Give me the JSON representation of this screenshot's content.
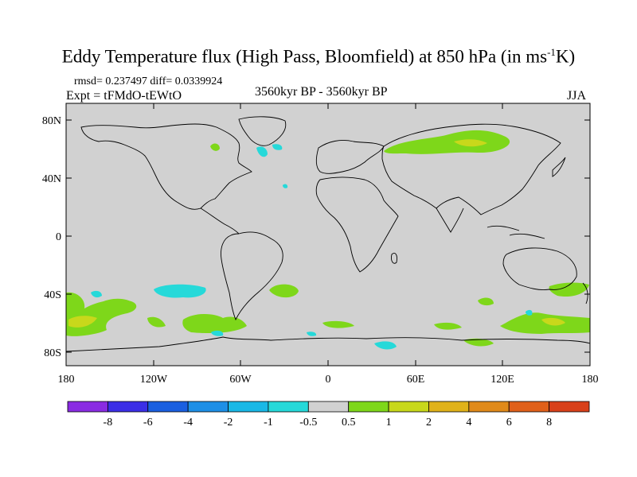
{
  "title": {
    "main": "Eddy Temperature flux (High Pass, Bloomfield) at 850 hPa (in ms",
    "sup": "-1",
    "unit_end": "K)"
  },
  "stats": {
    "rmsd_text": "rmsd= 0.237497 diff= 0.0339924",
    "expt_text": "Expt = tFMdO-tEWtO",
    "period_text": "3560kyr BP - 3560kyr BP",
    "season_text": "JJA"
  },
  "map": {
    "projection": "cylindrical equidistant",
    "lon_range": [
      -180,
      180
    ],
    "lat_range": [
      -90,
      90
    ],
    "background_color": "#d1d1d1",
    "coastline_color": "#000000",
    "lat_ticks": [
      "80N",
      "40N",
      "0",
      "40S",
      "80S"
    ],
    "lon_ticks": [
      "180",
      "120W",
      "60W",
      "0",
      "60E",
      "120E",
      "180"
    ]
  },
  "colorbar": {
    "colors": [
      "#8a2be2",
      "#3b2ee6",
      "#1a5fe0",
      "#1e8fe6",
      "#19b8e6",
      "#26d9d9",
      "#d1d1d1",
      "#7ed71a",
      "#c8d81b",
      "#e0b21a",
      "#e08a1a",
      "#e0601a",
      "#d8401a"
    ],
    "labels": [
      "-8",
      "-6",
      "-4",
      "-2",
      "-1",
      "-0.5",
      "0.5",
      "1",
      "2",
      "4",
      "6",
      "8"
    ]
  },
  "regions_legend": {
    "green": "1",
    "cyan": "-1",
    "yellow": "2"
  }
}
